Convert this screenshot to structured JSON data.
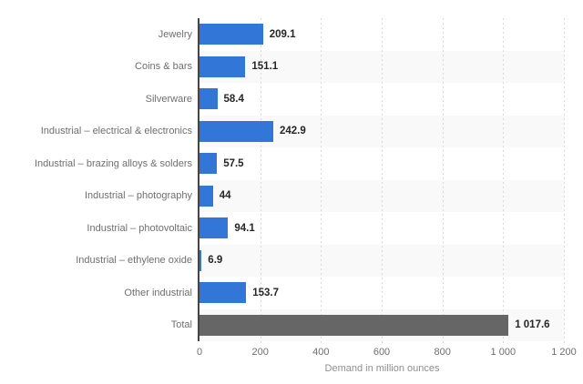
{
  "chart_data": {
    "type": "bar",
    "orientation": "horizontal",
    "categories": [
      "Jewelry",
      "Coins & bars",
      "Silverware",
      "Industrial – electrical & electronics",
      "Industrial – brazing alloys & solders",
      "Industrial – photography",
      "Industrial – photovoltaic",
      "Industrial – ethylene oxide",
      "Other industrial",
      "Total"
    ],
    "values": [
      209.1,
      151.1,
      58.4,
      242.9,
      57.5,
      44,
      94.1,
      6.9,
      153.7,
      1017.6
    ],
    "value_labels": [
      "209.1",
      "151.1",
      "58.4",
      "242.9",
      "57.5",
      "44",
      "94.1",
      "6.9",
      "153.7",
      "1 017.6"
    ],
    "xlabel": "Demand in million ounces",
    "xlim": [
      0,
      1200
    ],
    "xticks": [
      {
        "label": "0",
        "value": 0
      },
      {
        "label": "200",
        "value": 200
      },
      {
        "label": "400",
        "value": 400
      },
      {
        "label": "600",
        "value": 600
      },
      {
        "label": "800",
        "value": 800
      },
      {
        "label": "1 000",
        "value": 1000
      },
      {
        "label": "1 200",
        "value": 1200
      }
    ],
    "grid": "vertical-dashed",
    "legend": "none",
    "total_category": "Total",
    "colors": {
      "bar": "#3277d7",
      "total_bar": "#666666",
      "axis_line": "#454545",
      "gridline": "#d9d9d9",
      "row_stripe": "#f9f9f9",
      "category_text": "#6f6f6f",
      "value_text": "#262626",
      "axis_title_text": "#8f8f8f"
    }
  }
}
